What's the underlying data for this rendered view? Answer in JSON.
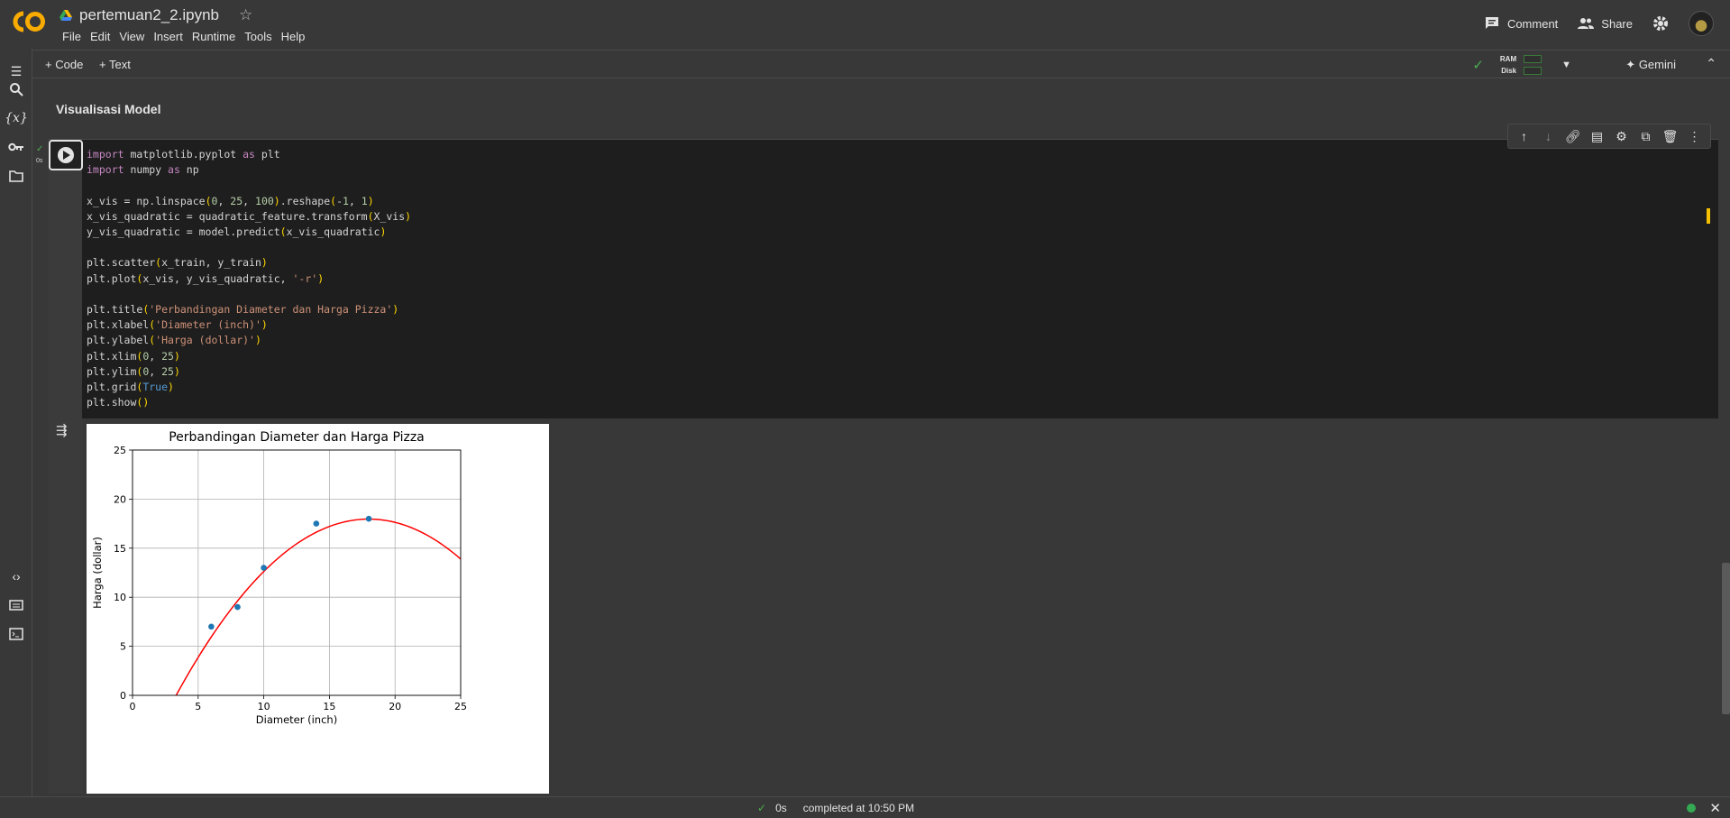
{
  "header": {
    "notebook_title": "pertemuan2_2.ipynb",
    "menu": [
      "File",
      "Edit",
      "View",
      "Insert",
      "Runtime",
      "Tools",
      "Help"
    ],
    "comment_label": "Comment",
    "share_label": "Share"
  },
  "toolbar": {
    "add_code_label": "Code",
    "add_text_label": "Text",
    "ram_label": "RAM",
    "disk_label": "Disk",
    "gemini_label": "Gemini"
  },
  "section": {
    "heading": "Visualisasi Model"
  },
  "cell": {
    "exec_time": "0s",
    "code_lines": [
      "import matplotlib.pyplot as plt",
      "import numpy as np",
      "",
      "x_vis = np.linspace(0, 25, 100).reshape(-1, 1)",
      "x_vis_quadratic = quadratic_feature.transform(X_vis)",
      "y_vis_quadratic = model.predict(x_vis_quadratic)",
      "",
      "plt.scatter(x_train, y_train)",
      "plt.plot(x_vis, y_vis_quadratic, '-r')",
      "",
      "plt.title('Perbandingan Diameter dan Harga Pizza')",
      "plt.xlabel('Diameter (inch)')",
      "plt.ylabel('Harga (dollar)')",
      "plt.xlim(0, 25)",
      "plt.ylim(0, 25)",
      "plt.grid(True)",
      "plt.show()"
    ]
  },
  "chart_data": {
    "type": "scatter",
    "title": "Perbandingan Diameter dan Harga Pizza",
    "xlabel": "Diameter (inch)",
    "ylabel": "Harga (dollar)",
    "xlim": [
      0,
      25
    ],
    "ylim": [
      0,
      25
    ],
    "x_ticks": [
      0,
      5,
      10,
      15,
      20,
      25
    ],
    "y_ticks": [
      0,
      5,
      10,
      15,
      20,
      25
    ],
    "grid": true,
    "scatter": {
      "x": [
        6,
        8,
        10,
        14,
        18
      ],
      "y": [
        7,
        9,
        13,
        17.5,
        18
      ],
      "color": "#1f77b4"
    },
    "curve": {
      "x_start": 0,
      "x_end": 25,
      "points": 100,
      "coefficients": [
        -9.0476,
        3.0,
        -0.0833
      ],
      "color": "#ff0000"
    }
  },
  "statusbar": {
    "duration": "0s",
    "message": "completed at 10:50 PM"
  },
  "colors": {
    "accent_green": "#4caf50",
    "code_keyword": "#c586c0",
    "code_string": "#ce9178"
  }
}
